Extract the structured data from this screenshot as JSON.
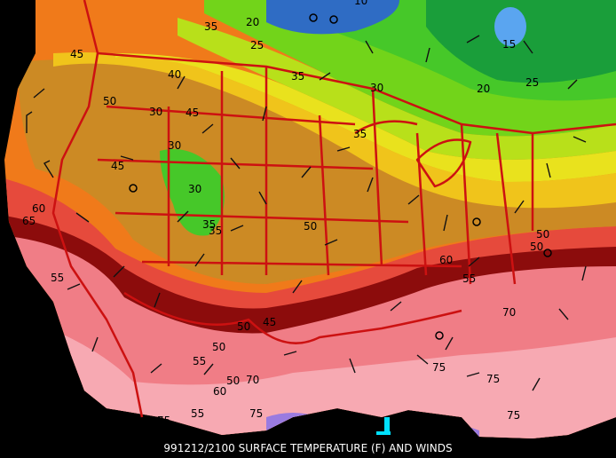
{
  "caption": "991212/2100 SURFACE TEMPERATURE (F) AND WINDS",
  "colors": {
    "band_10_15": "#2f6cc4",
    "band_15_20": "#1a9e3a",
    "band_20_25": "#1faf30",
    "band_25_30": "#46c829",
    "band_30_35": "#72d41a",
    "band_35_40": "#b8e01a",
    "band_40_45": "#e9e21d",
    "band_45_50": "#f0c41b",
    "band_50_55": "#cc8a24",
    "band_55_60": "#f07a1a",
    "band_60_65": "#e64a3c",
    "band_65_70": "#8c0c0c",
    "band_70_75": "#f07d86",
    "band_75_80": "#f7a9b2",
    "band_80_85": "#9a7be0",
    "border": "#cc1111",
    "background": "#000000"
  },
  "contour_labels": [
    {
      "id": "l1",
      "text": "10"
    },
    {
      "id": "l2",
      "text": "20"
    },
    {
      "id": "l3",
      "text": "35"
    },
    {
      "id": "l4",
      "text": "25"
    },
    {
      "id": "l5",
      "text": "15"
    },
    {
      "id": "l6",
      "text": "20"
    },
    {
      "id": "l7",
      "text": "25"
    },
    {
      "id": "l8",
      "text": "45"
    },
    {
      "id": "l9",
      "text": "40"
    },
    {
      "id": "l10",
      "text": "35"
    },
    {
      "id": "l11",
      "text": "30"
    },
    {
      "id": "l12",
      "text": "50"
    },
    {
      "id": "l13",
      "text": "30"
    },
    {
      "id": "l14",
      "text": "45"
    },
    {
      "id": "l15",
      "text": "35"
    },
    {
      "id": "l16",
      "text": "30"
    },
    {
      "id": "l17",
      "text": "45"
    },
    {
      "id": "l18",
      "text": "30"
    },
    {
      "id": "l19",
      "text": "35"
    },
    {
      "id": "l20",
      "text": "35"
    },
    {
      "id": "l21",
      "text": "60"
    },
    {
      "id": "l22",
      "text": "65"
    },
    {
      "id": "l23",
      "text": "50"
    },
    {
      "id": "l24",
      "text": "50"
    },
    {
      "id": "l25",
      "text": "50"
    },
    {
      "id": "l26",
      "text": "55"
    },
    {
      "id": "l27",
      "text": "60"
    },
    {
      "id": "l28",
      "text": "55"
    },
    {
      "id": "l29",
      "text": "45"
    },
    {
      "id": "l30",
      "text": "50"
    },
    {
      "id": "l31",
      "text": "50"
    },
    {
      "id": "l32",
      "text": "70"
    },
    {
      "id": "l33",
      "text": "55"
    },
    {
      "id": "l34",
      "text": "50"
    },
    {
      "id": "l35",
      "text": "60"
    },
    {
      "id": "l36",
      "text": "70"
    },
    {
      "id": "l37",
      "text": "75"
    },
    {
      "id": "l38",
      "text": "75"
    },
    {
      "id": "l39",
      "text": "55"
    },
    {
      "id": "l40",
      "text": "75"
    },
    {
      "id": "l41",
      "text": "75"
    },
    {
      "id": "l42",
      "text": "75"
    }
  ]
}
